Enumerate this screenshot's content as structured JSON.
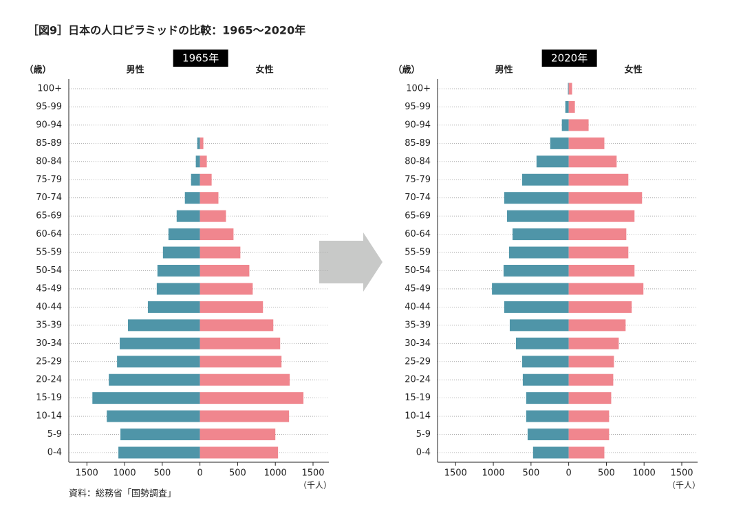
{
  "title": "［図9］日本の人口ピラミッドの比較：1965～2020年",
  "source": "資料：総務省「国勢調査」",
  "chart_data": [
    {
      "type": "pyramid",
      "title": "1965年",
      "ylabel": "（歳）",
      "xlabel": "（千人）",
      "categories": [
        "100+",
        "95-99",
        "90-94",
        "85-89",
        "80-84",
        "75-79",
        "70-74",
        "65-69",
        "60-64",
        "55-59",
        "50-54",
        "45-49",
        "40-44",
        "35-39",
        "30-34",
        "25-29",
        "20-24",
        "15-19",
        "10-14",
        "5-9",
        "0-4"
      ],
      "series": [
        {
          "name": "男性",
          "color": "#4f95a8",
          "side": "left",
          "values": [
            0,
            0,
            0,
            36,
            55,
            118,
            200,
            309,
            418,
            491,
            564,
            573,
            691,
            955,
            1064,
            1100,
            1209,
            1427,
            1236,
            1055,
            1082
          ]
        },
        {
          "name": "女性",
          "color": "#f0868e",
          "side": "right",
          "values": [
            0,
            0,
            0,
            45,
            91,
            155,
            245,
            345,
            445,
            536,
            655,
            700,
            836,
            973,
            1064,
            1082,
            1191,
            1373,
            1182,
            1000,
            1036
          ]
        }
      ],
      "xlim": [
        -1740,
        1710
      ],
      "xticks": [
        {
          "value": -1500,
          "label": "1500"
        },
        {
          "value": -1000,
          "label": "1000"
        },
        {
          "value": -500,
          "label": "500"
        },
        0,
        500,
        1000,
        1500
      ],
      "grid": true
    },
    {
      "type": "pyramid",
      "title": "2020年",
      "ylabel": "（歳）",
      "xlabel": "（千人）",
      "categories": [
        "100+",
        "95-99",
        "90-94",
        "85-89",
        "80-84",
        "75-79",
        "70-74",
        "65-69",
        "60-64",
        "55-59",
        "50-54",
        "45-49",
        "40-44",
        "35-39",
        "30-34",
        "25-29",
        "20-24",
        "15-19",
        "10-14",
        "5-9",
        "0-4"
      ],
      "series": [
        {
          "name": "男性",
          "color": "#4f95a8",
          "side": "left",
          "values": [
            10,
            45,
            91,
            245,
            427,
            618,
            855,
            818,
            745,
            791,
            864,
            1018,
            855,
            782,
            700,
            618,
            609,
            564,
            564,
            545,
            473
          ]
        },
        {
          "name": "女性",
          "color": "#f0868e",
          "side": "right",
          "values": [
            45,
            82,
            264,
            473,
            636,
            791,
            973,
            873,
            764,
            791,
            873,
            991,
            836,
            755,
            664,
            600,
            591,
            564,
            536,
            536,
            473
          ]
        }
      ],
      "xlim": [
        -1740,
        1710
      ],
      "xticks": [
        {
          "value": -1500,
          "label": "1500"
        },
        {
          "value": -1000,
          "label": "1000"
        },
        {
          "value": -500,
          "label": "500"
        },
        0,
        500,
        1000,
        1500
      ],
      "grid": true
    }
  ]
}
